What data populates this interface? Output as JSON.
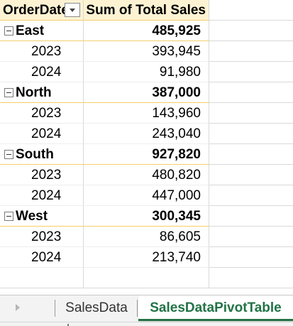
{
  "pivot": {
    "header": {
      "row_label": "OrderDate",
      "value_label": "Sum of Total Sales"
    },
    "groups": [
      {
        "region": "East",
        "total": "485,925",
        "years": [
          {
            "year": "2023",
            "value": "393,945"
          },
          {
            "year": "2024",
            "value": "91,980"
          }
        ]
      },
      {
        "region": "North",
        "total": "387,000",
        "years": [
          {
            "year": "2023",
            "value": "143,960"
          },
          {
            "year": "2024",
            "value": "243,040"
          }
        ]
      },
      {
        "region": "South",
        "total": "927,820",
        "years": [
          {
            "year": "2023",
            "value": "480,820"
          },
          {
            "year": "2024",
            "value": "447,000"
          }
        ]
      },
      {
        "region": "West",
        "total": "300,345",
        "years": [
          {
            "year": "2023",
            "value": "86,605"
          },
          {
            "year": "2024",
            "value": "213,740"
          }
        ]
      }
    ]
  },
  "sheet_tabs": {
    "tabs": [
      "SalesData",
      "SalesDataPivotTable"
    ],
    "active_index": 1
  },
  "colors": {
    "header_fill": "#fdf3d3",
    "group_border": "#f2ce6b",
    "active_tab_text": "#217346"
  }
}
